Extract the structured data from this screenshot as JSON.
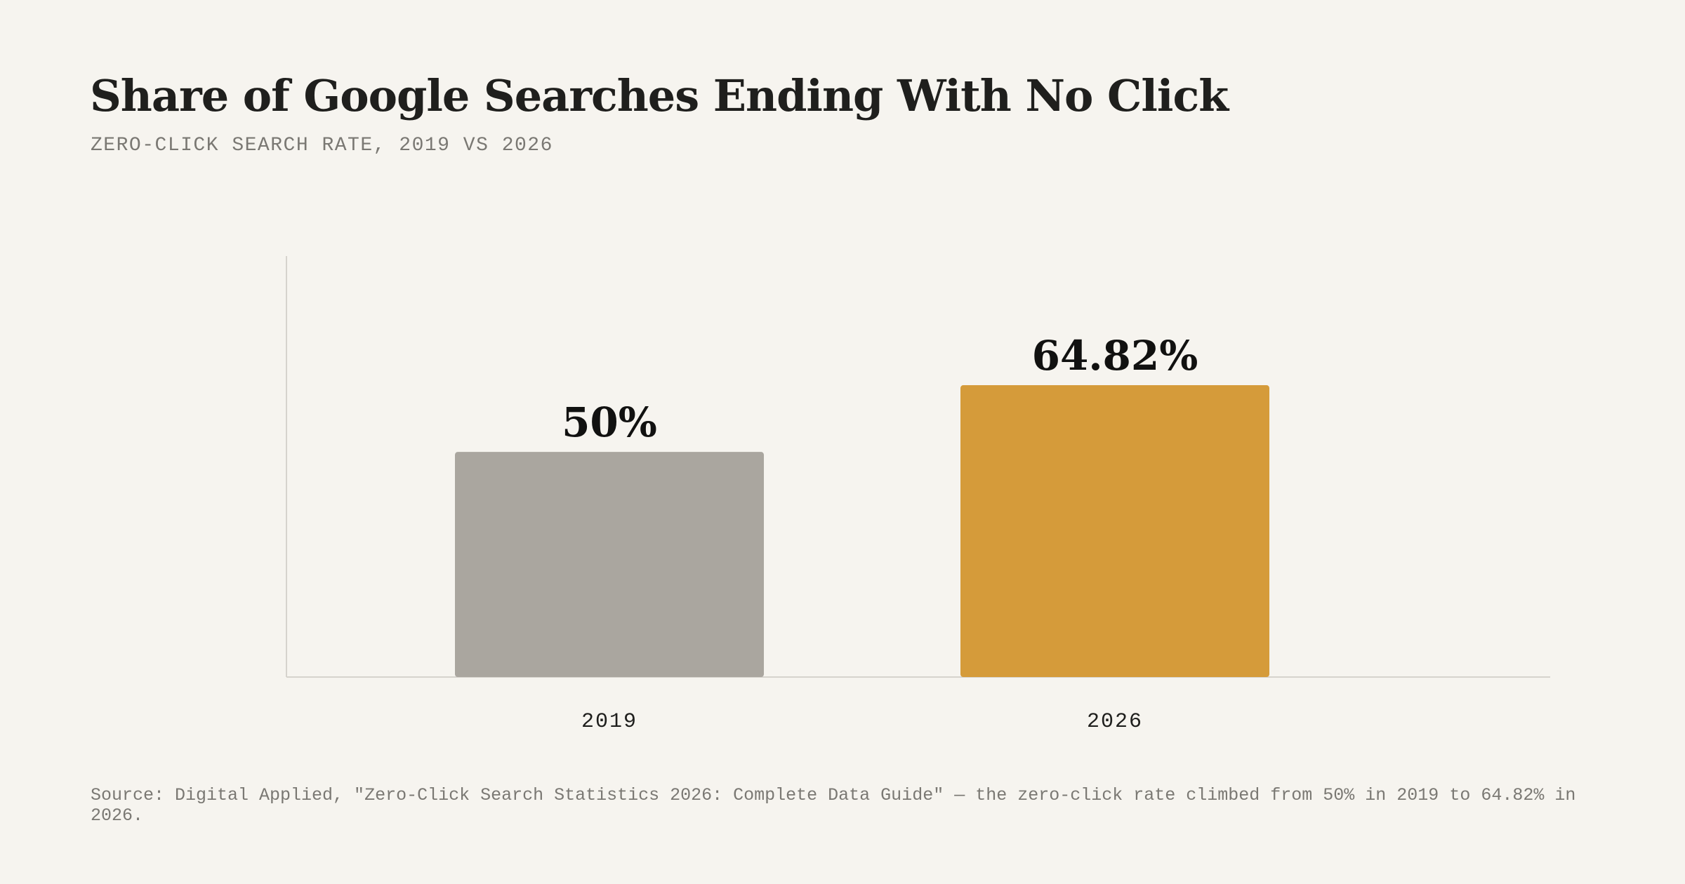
{
  "header": {
    "title": "Share of Google Searches Ending With No Click",
    "subtitle": "ZERO-CLICK SEARCH RATE, 2019 VS 2026"
  },
  "colors": {
    "background": "#f6f4ef",
    "bar_2019": "#aaa69f",
    "bar_2026": "#d59b3a",
    "axis": "#d6d3cd",
    "text_dark": "#1f1f1d",
    "text_muted": "#7a7873"
  },
  "chart_data": {
    "type": "bar",
    "categories": [
      "2019",
      "2026"
    ],
    "values": [
      50,
      64.82
    ],
    "value_labels": [
      "50%",
      "64.82%"
    ],
    "title": "Share of Google Searches Ending With No Click",
    "subtitle": "ZERO-CLICK SEARCH RATE, 2019 VS 2026",
    "xlabel": "",
    "ylabel": "",
    "ylim": [
      0,
      93.5
    ],
    "grid": false,
    "legend": "none"
  },
  "footer": {
    "source": "Source: Digital Applied, \"Zero-Click Search Statistics 2026: Complete Data Guide\" — the zero-click rate climbed from 50% in 2019 to 64.82% in 2026."
  }
}
